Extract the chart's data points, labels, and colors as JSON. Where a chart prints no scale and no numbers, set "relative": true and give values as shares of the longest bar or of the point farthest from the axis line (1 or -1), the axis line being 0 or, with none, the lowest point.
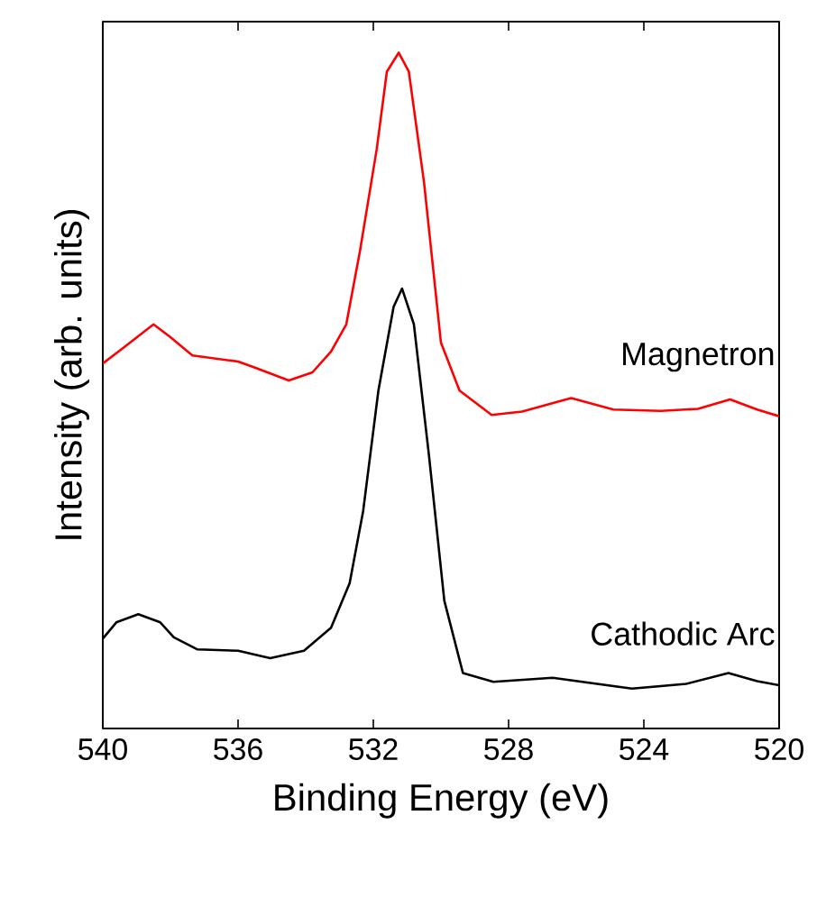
{
  "chart_data": {
    "type": "line",
    "xlabel": "Binding Energy (eV)",
    "ylabel": "Intensity (arb. units)",
    "relative": true,
    "xlim": [
      540,
      520
    ],
    "xticks": [
      540,
      536,
      532,
      528,
      524,
      520
    ],
    "tick_labels": "x",
    "legend": false,
    "grid": false,
    "marker": "none",
    "line_style": "solid",
    "series": [
      {
        "name": "Magnetron",
        "color": "#ff0000",
        "x": [
          540,
          539.4,
          538.5,
          538.0,
          537.35,
          536.0,
          535.5,
          534.5,
          533.8,
          533.25,
          532.8,
          532.4,
          531.9,
          531.6,
          531.25,
          530.95,
          530.5,
          530.0,
          529.45,
          528.5,
          527.6,
          526.15,
          524.9,
          523.5,
          522.4,
          521.45,
          520.65,
          520
        ],
        "values": [
          0.54,
          0.563,
          0.598,
          0.579,
          0.552,
          0.543,
          0.534,
          0.515,
          0.527,
          0.558,
          0.598,
          0.705,
          0.857,
          0.972,
          1.0,
          0.972,
          0.808,
          0.571,
          0.5,
          0.464,
          0.469,
          0.489,
          0.472,
          0.47,
          0.473,
          0.487,
          0.472,
          0.462
        ]
      },
      {
        "name": "Cathodic Arc",
        "color": "#000000",
        "x": [
          540,
          539.6,
          538.95,
          538.3,
          537.9,
          537.2,
          536.0,
          535.05,
          534.05,
          533.25,
          532.7,
          532.3,
          531.85,
          531.4,
          531.15,
          530.8,
          530.35,
          529.9,
          529.35,
          528.45,
          526.7,
          524.35,
          522.75,
          521.5,
          520.65,
          520
        ],
        "values": [
          0.133,
          0.157,
          0.169,
          0.157,
          0.135,
          0.117,
          0.115,
          0.104,
          0.115,
          0.149,
          0.215,
          0.322,
          0.5,
          0.624,
          0.651,
          0.598,
          0.402,
          0.189,
          0.082,
          0.069,
          0.075,
          0.059,
          0.066,
          0.082,
          0.07,
          0.064
        ]
      }
    ]
  }
}
